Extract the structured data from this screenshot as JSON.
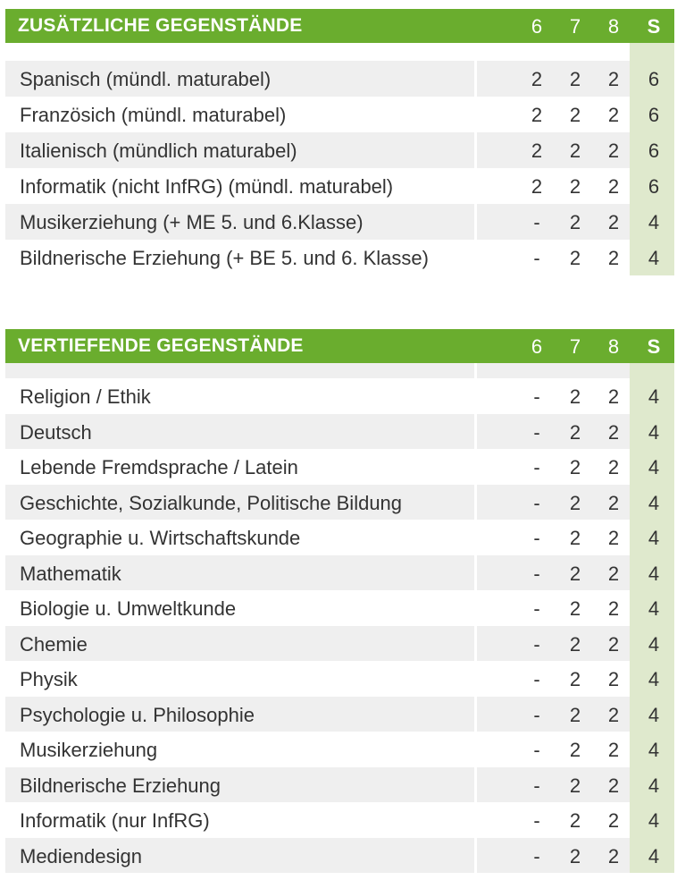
{
  "colors": {
    "header": "#6aad2e",
    "sum_column": "#dfe9cd",
    "row_alt": "#efefef"
  },
  "sections": [
    {
      "title": "ZUSÄTZLICHE GEGENSTÄNDE",
      "columns": [
        "6",
        "7",
        "8",
        "S"
      ],
      "rows": [
        {
          "label": "Spanisch (mündl. maturabel)",
          "values": [
            "2",
            "2",
            "2",
            "6"
          ]
        },
        {
          "label": "Französich (mündl. maturabel)",
          "values": [
            "2",
            "2",
            "2",
            "6"
          ]
        },
        {
          "label": "Italienisch (mündlich maturabel)",
          "values": [
            "2",
            "2",
            "2",
            "6"
          ]
        },
        {
          "label": "Informatik (nicht InfRG) (mündl. maturabel)",
          "values": [
            "2",
            "2",
            "2",
            "6"
          ]
        },
        {
          "label": "Musikerziehung (+ ME 5. und 6.Klasse)",
          "values": [
            "-",
            "2",
            "2",
            "4"
          ]
        },
        {
          "label": "Bildnerische Erziehung (+ BE 5. und 6. Klasse)",
          "values": [
            "-",
            "2",
            "2",
            "4"
          ]
        }
      ]
    },
    {
      "title": "VERTIEFENDE GEGENSTÄNDE",
      "columns": [
        "6",
        "7",
        "8",
        "S"
      ],
      "rows": [
        {
          "label": "Religion / Ethik",
          "values": [
            "-",
            "2",
            "2",
            "4"
          ]
        },
        {
          "label": "Deutsch",
          "values": [
            "-",
            "2",
            "2",
            "4"
          ]
        },
        {
          "label": "Lebende Fremdsprache / Latein",
          "values": [
            "-",
            "2",
            "2",
            "4"
          ]
        },
        {
          "label": "Geschichte, Sozialkunde, Politische Bildung",
          "values": [
            "-",
            "2",
            "2",
            "4"
          ]
        },
        {
          "label": "Geographie u. Wirtschaftskunde",
          "values": [
            "-",
            "2",
            "2",
            "4"
          ]
        },
        {
          "label": "Mathematik",
          "values": [
            "-",
            "2",
            "2",
            "4"
          ]
        },
        {
          "label": "Biologie u. Umweltkunde",
          "values": [
            "-",
            "2",
            "2",
            "4"
          ]
        },
        {
          "label": "Chemie",
          "values": [
            "-",
            "2",
            "2",
            "4"
          ]
        },
        {
          "label": "Physik",
          "values": [
            "-",
            "2",
            "2",
            "4"
          ]
        },
        {
          "label": "Psychologie u. Philosophie",
          "values": [
            "-",
            "2",
            "2",
            "4"
          ]
        },
        {
          "label": "Musikerziehung",
          "values": [
            "-",
            "2",
            "2",
            "4"
          ]
        },
        {
          "label": "Bildnerische Erziehung",
          "values": [
            "-",
            "2",
            "2",
            "4"
          ]
        },
        {
          "label": "Informatik (nur InfRG)",
          "values": [
            "-",
            "2",
            "2",
            "4"
          ]
        },
        {
          "label": "Mediendesign",
          "values": [
            "-",
            "2",
            "2",
            "4"
          ]
        }
      ]
    }
  ]
}
